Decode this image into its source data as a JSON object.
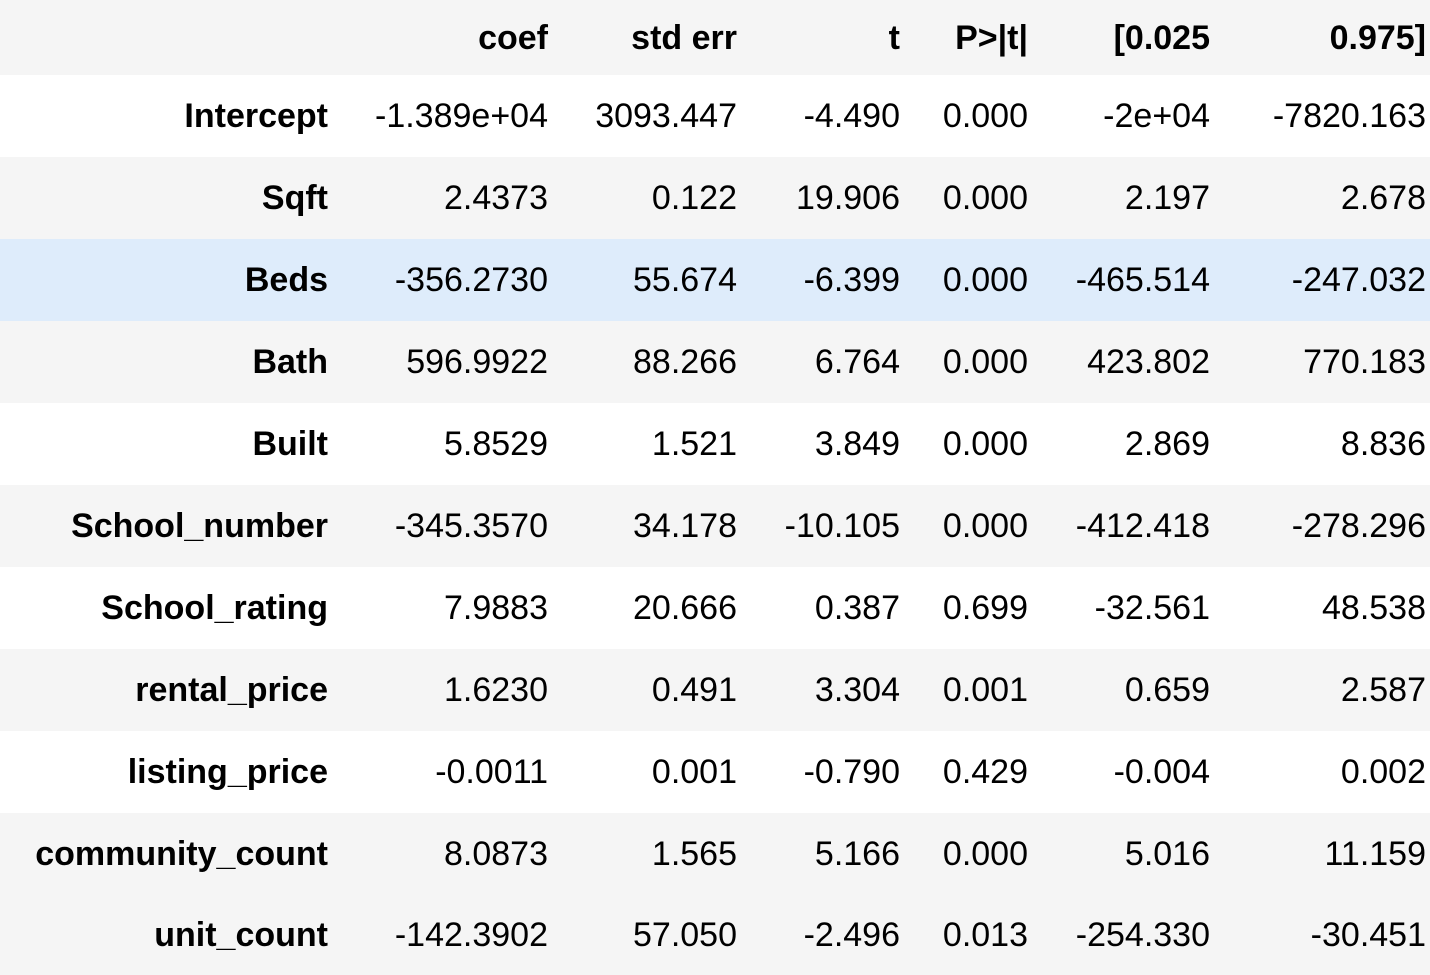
{
  "table": {
    "columns": [
      "",
      "coef",
      "std err",
      "t",
      "P>|t|",
      "[0.025",
      "0.975]"
    ],
    "rows": [
      {
        "name": "Intercept",
        "coef": "-1.389e+04",
        "std_err": "3093.447",
        "t": "-4.490",
        "p": "0.000",
        "ci_low": "-2e+04",
        "ci_high": "-7820.163"
      },
      {
        "name": "Sqft",
        "coef": "2.4373",
        "std_err": "0.122",
        "t": "19.906",
        "p": "0.000",
        "ci_low": "2.197",
        "ci_high": "2.678"
      },
      {
        "name": "Beds",
        "coef": "-356.2730",
        "std_err": "55.674",
        "t": "-6.399",
        "p": "0.000",
        "ci_low": "-465.514",
        "ci_high": "-247.032"
      },
      {
        "name": "Bath",
        "coef": "596.9922",
        "std_err": "88.266",
        "t": "6.764",
        "p": "0.000",
        "ci_low": "423.802",
        "ci_high": "770.183"
      },
      {
        "name": "Built",
        "coef": "5.8529",
        "std_err": "1.521",
        "t": "3.849",
        "p": "0.000",
        "ci_low": "2.869",
        "ci_high": "8.836"
      },
      {
        "name": "School_number",
        "coef": "-345.3570",
        "std_err": "34.178",
        "t": "-10.105",
        "p": "0.000",
        "ci_low": "-412.418",
        "ci_high": "-278.296"
      },
      {
        "name": "School_rating",
        "coef": "7.9883",
        "std_err": "20.666",
        "t": "0.387",
        "p": "0.699",
        "ci_low": "-32.561",
        "ci_high": "48.538"
      },
      {
        "name": "rental_price",
        "coef": "1.6230",
        "std_err": "0.491",
        "t": "3.304",
        "p": "0.001",
        "ci_low": "0.659",
        "ci_high": "2.587"
      },
      {
        "name": "listing_price",
        "coef": "-0.0011",
        "std_err": "0.001",
        "t": "-0.790",
        "p": "0.429",
        "ci_low": "-0.004",
        "ci_high": "0.002"
      },
      {
        "name": "community_count",
        "coef": "8.0873",
        "std_err": "1.565",
        "t": "5.166",
        "p": "0.000",
        "ci_low": "5.016",
        "ci_high": "11.159"
      },
      {
        "name": "unit_count",
        "coef": "-142.3902",
        "std_err": "57.050",
        "t": "-2.496",
        "p": "0.013",
        "ci_low": "-254.330",
        "ci_high": "-30.451"
      }
    ],
    "hovered_row": "Beds",
    "colors": {
      "header_bg": "#f5f5f5",
      "stripe_bg": "#f5f5f5",
      "hover_bg": "#deecfb",
      "text": "#000000"
    }
  }
}
